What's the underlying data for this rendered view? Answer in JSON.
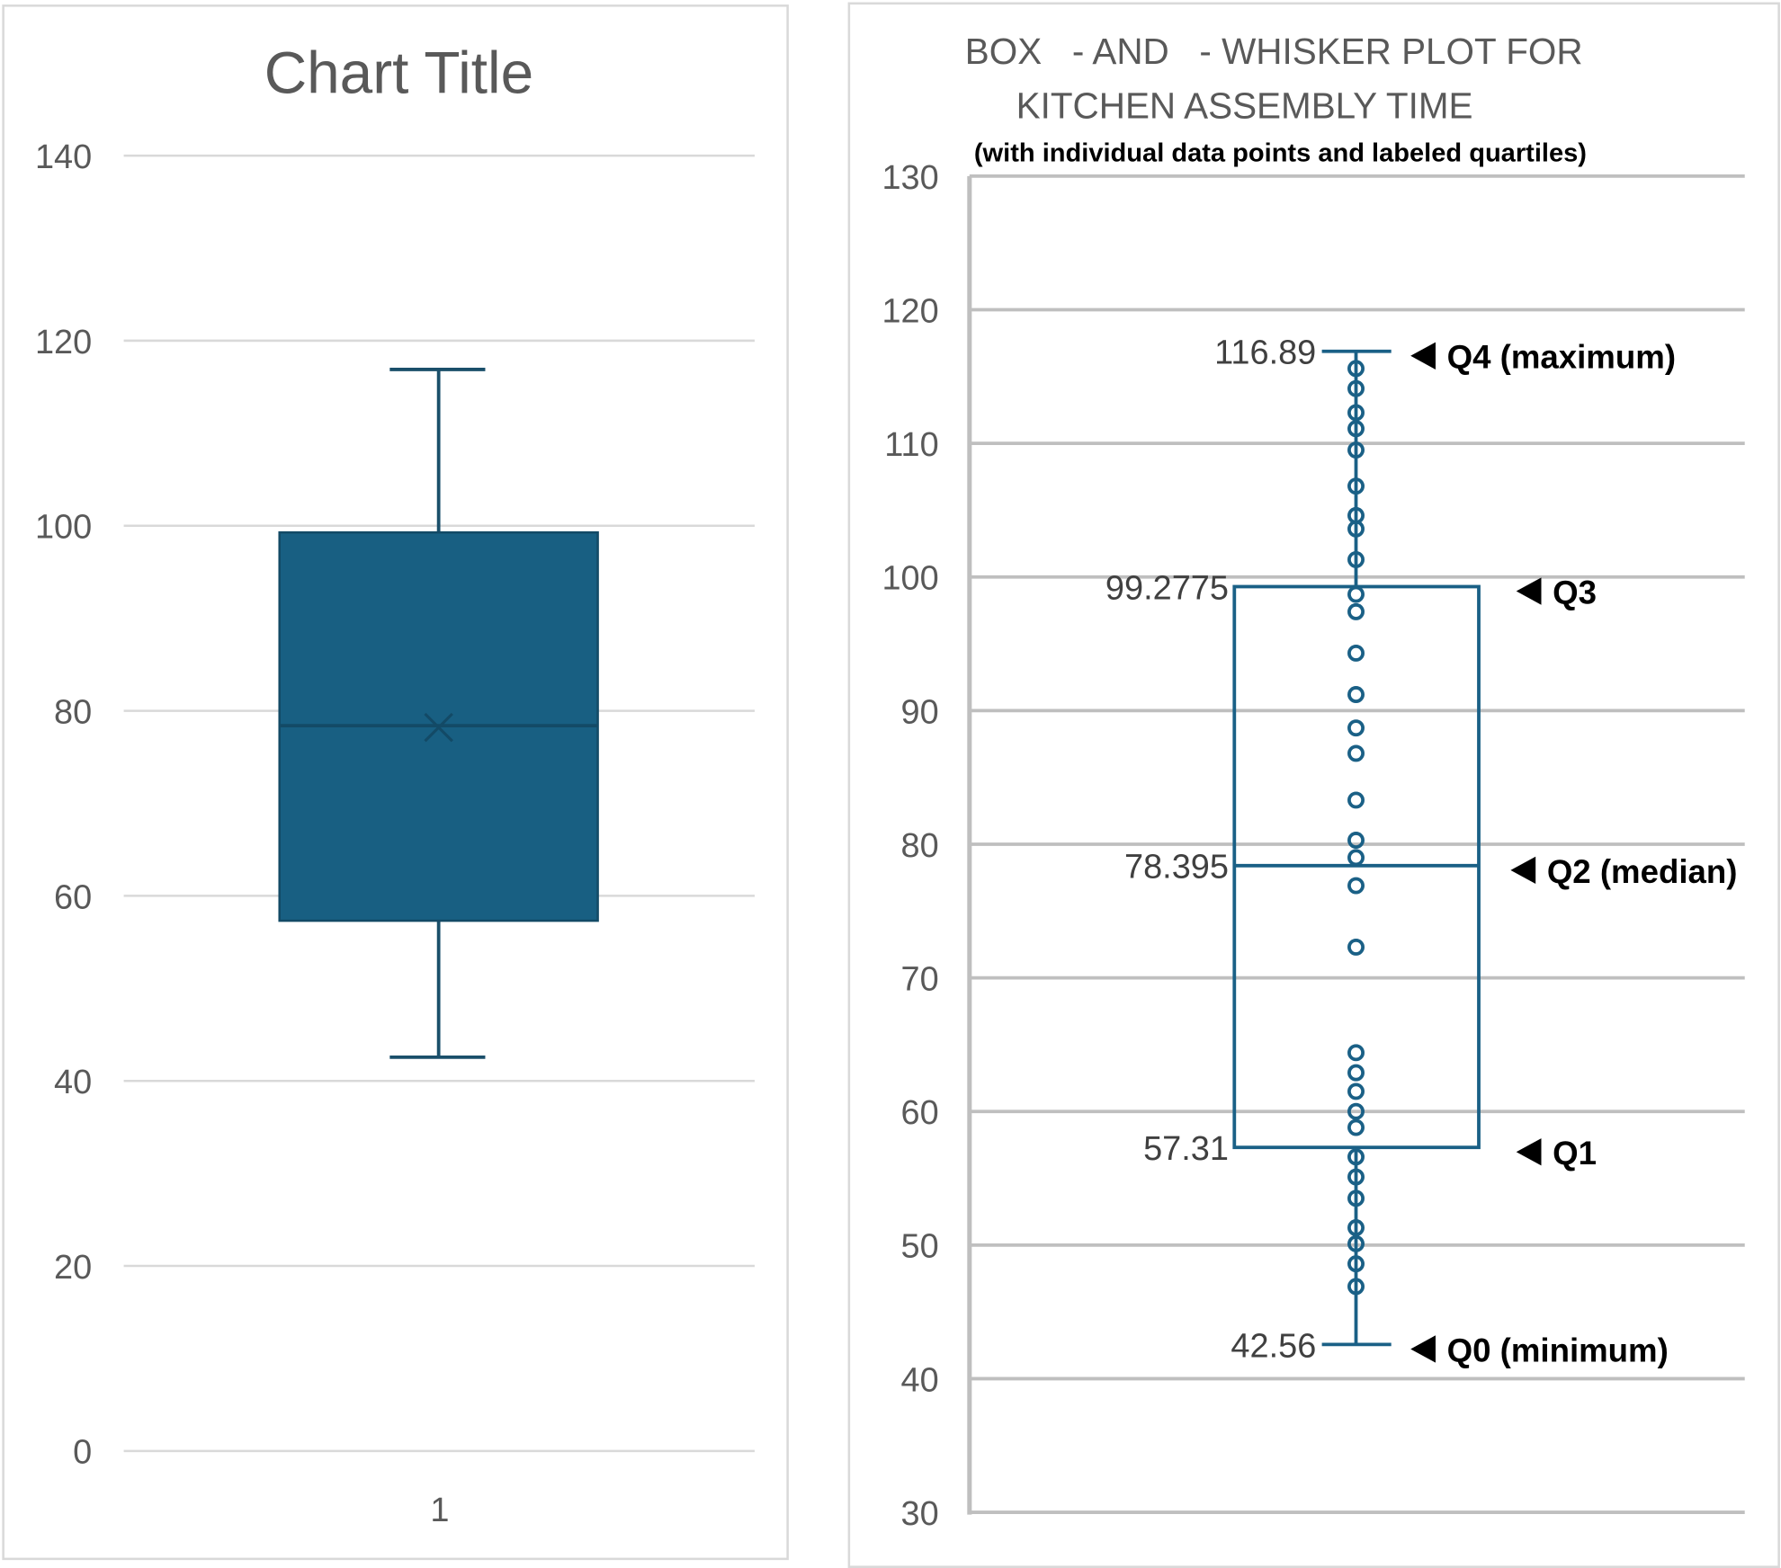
{
  "colors": {
    "accent": "#1A6086",
    "box_fill": "#185F82",
    "grid": "#D9D9D9",
    "axis_text": "#595959"
  },
  "chart_data": [
    {
      "type": "box",
      "title": "Chart Title",
      "categories": [
        "1"
      ],
      "ylim": [
        0,
        140
      ],
      "yticks": [
        0,
        20,
        40,
        60,
        80,
        100,
        120,
        140
      ],
      "grid": true,
      "stats": {
        "min": 42.56,
        "q1": 57.31,
        "median": 78.395,
        "q3": 99.2775,
        "max": 116.89,
        "mean": 78.2
      }
    },
    {
      "type": "box",
      "title_line1": "BOX   - AND   - WHISKER PLOT FOR",
      "title_line2": "KITCHEN ASSEMBLY TIME",
      "subtitle": "(with individual data points and labeled quartiles)",
      "ylim": [
        30,
        130
      ],
      "yticks": [
        30,
        40,
        50,
        60,
        70,
        80,
        90,
        100,
        110,
        120,
        130
      ],
      "grid": true,
      "stats": {
        "min": 42.56,
        "q1": 57.31,
        "median": 78.395,
        "q3": 99.2775,
        "max": 116.89
      },
      "value_labels": {
        "max": "116.89",
        "q3": "99.2775",
        "median": "78.395",
        "q1": "57.31",
        "min": "42.56"
      },
      "annotations": {
        "max": "Q4 (maximum)",
        "q3": "Q3",
        "median": "Q2 (median)",
        "q1": "Q1",
        "min": "Q0 (minimum)"
      },
      "points": [
        115.6,
        114.1,
        112.3,
        111.1,
        109.5,
        106.8,
        104.6,
        103.6,
        101.3,
        98.7,
        97.4,
        94.3,
        91.2,
        88.7,
        86.8,
        83.3,
        80.3,
        79.0,
        76.9,
        72.3,
        64.4,
        62.9,
        61.5,
        60.0,
        58.8,
        56.6,
        55.1,
        53.5,
        51.3,
        50.1,
        48.6,
        46.9
      ]
    }
  ]
}
